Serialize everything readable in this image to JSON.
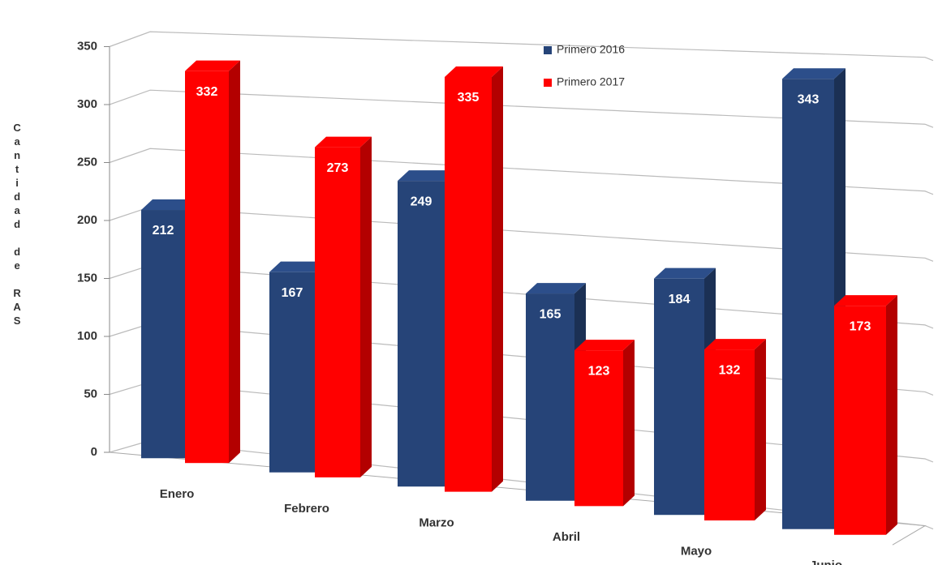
{
  "chart_data": {
    "type": "bar3d",
    "y_label": "Cantidad de RAS",
    "categories": [
      "Enero",
      "Febrero",
      "Marzo",
      "Abril",
      "Mayo",
      "Junio"
    ],
    "series": [
      {
        "name": "Primero 2016",
        "color": "#264478",
        "values": [
          212,
          167,
          249,
          165,
          184,
          343
        ]
      },
      {
        "name": "Primero 2017",
        "color": "#ff0000",
        "values": [
          332,
          273,
          335,
          123,
          132,
          173
        ]
      }
    ],
    "ylim": [
      0,
      350
    ],
    "yticks": [
      0,
      50,
      100,
      150,
      200,
      250,
      300,
      350
    ],
    "grid": true,
    "legend": "top"
  }
}
